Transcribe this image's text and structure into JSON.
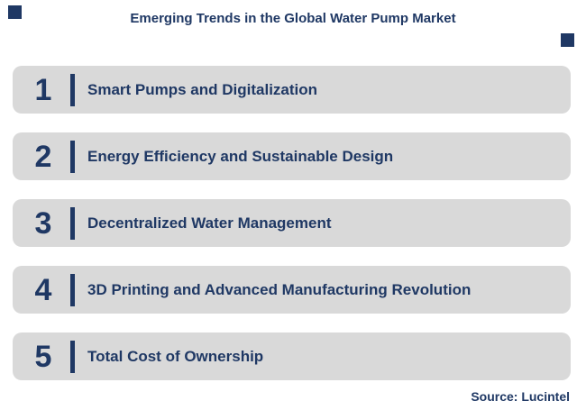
{
  "header": {
    "title": "Emerging Trends in the Global Water Pump Market"
  },
  "trends": [
    {
      "number": "1",
      "label": "Smart Pumps and Digitalization"
    },
    {
      "number": "2",
      "label": "Energy Efficiency and Sustainable Design"
    },
    {
      "number": "3",
      "label": "Decentralized Water Management"
    },
    {
      "number": "4",
      "label": "3D Printing and Advanced Manufacturing Revolution"
    },
    {
      "number": "5",
      "label": "Total Cost of Ownership"
    }
  ],
  "footer": {
    "source": "Source: Lucintel"
  },
  "colors": {
    "navy": "#1F3864",
    "gray": "#D9D9D9"
  }
}
